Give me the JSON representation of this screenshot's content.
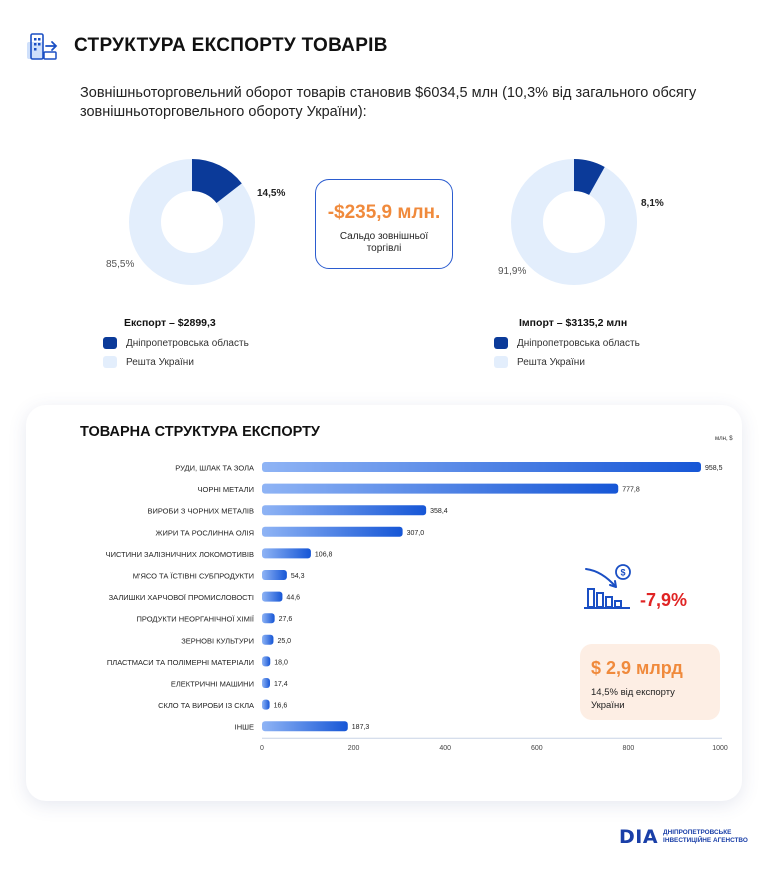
{
  "title": "СТРУКТУРА ЕКСПОРТУ ТОВАРІВ",
  "lead": "Зовнішньоторговельний оборот товарів становив $6034,5 млн (10,3% від загального обсягу зовнішньоторговельного обороту України):",
  "colors": {
    "accent": "#0b3a99",
    "light": "#e3eefc",
    "orange": "#f08a3c",
    "red": "#e02424",
    "bar_start": "#8fb4f5",
    "bar_end": "#1656d6"
  },
  "export_donut": {
    "share_label": "14,5%",
    "rest_label": "85,5%",
    "share": 14.5,
    "legend_title": "Експорт – $2899,3",
    "legend_region": "Дніпропетровська область",
    "legend_rest": "Решта України"
  },
  "import_donut": {
    "share_label": "8,1%",
    "rest_label": "91,9%",
    "share": 8.1,
    "legend_title": "Імпорт – $3135,2 млн",
    "legend_region": "Дніпропетровська область",
    "legend_rest": "Решта України"
  },
  "saldo": {
    "value": "-$235,9 млн.",
    "caption_line1": "Сальдо зовнішньої",
    "caption_line2": "торгівлі"
  },
  "structure": {
    "title": "ТОВАРНА СТРУКТУРА ЕКСПОРТУ",
    "unit": "млн, $"
  },
  "change": {
    "value": "-7,9%",
    "icon": "chart-down-dollar-icon"
  },
  "total": {
    "value": "$ 2,9 млрд",
    "caption_line1": "14,5% від експорту",
    "caption_line2": "України"
  },
  "logo": {
    "mark": "DIA",
    "line1": "ДНІПРОПЕТРОВСЬКЕ",
    "line2": "ІНВЕСТИЦІЙНЕ АГЕНСТВО"
  },
  "chart_data": [
    {
      "type": "pie",
      "title": "Експорт – $2899,3",
      "categories": [
        "Дніпропетровська область",
        "Решта України"
      ],
      "values": [
        14.5,
        85.5
      ]
    },
    {
      "type": "pie",
      "title": "Імпорт – $3135,2 млн",
      "categories": [
        "Дніпропетровська область",
        "Решта України"
      ],
      "values": [
        8.1,
        91.9
      ]
    },
    {
      "type": "bar",
      "orientation": "horizontal",
      "title": "ТОВАРНА СТРУКТУРА ЕКСПОРТУ",
      "xlabel": "млн, $",
      "xlim": [
        0,
        1000
      ],
      "xticks": [
        0,
        200,
        400,
        600,
        800,
        1000
      ],
      "categories": [
        "РУДИ, ШЛАК ТА ЗОЛА",
        "ЧОРНІ МЕТАЛИ",
        "ВИРОБИ З ЧОРНИХ МЕТАЛІВ",
        "ЖИРИ ТА РОСЛИННА ОЛІЯ",
        "ЧИСТИНИ ЗАЛІЗНИЧНИХ ЛОКОМОТИВІВ",
        "М'ЯСО ТА ЇСТІВНІ СУБПРОДУКТИ",
        "ЗАЛИШКИ ХАРЧОВОЇ ПРОМИСЛОВОСТІ",
        "ПРОДУКТИ НЕОРГАНІЧНОЇ ХІМІЇ",
        "ЗЕРНОВІ КУЛЬТУРИ",
        "ПЛАСТМАСИ ТА ПОЛІМЕРНІ МАТЕРІАЛИ",
        "ЕЛЕКТРИЧНІ МАШИНИ",
        "СКЛО ТА ВИРОБИ ІЗ СКЛА",
        "ІНШЕ"
      ],
      "values": [
        958.5,
        777.8,
        358.4,
        307.0,
        106.8,
        54.3,
        44.6,
        27.6,
        25.0,
        18.0,
        17.4,
        16.6,
        187.3
      ],
      "value_labels": [
        "958,5",
        "777,8",
        "358,4",
        "307,0",
        "106,8",
        "54,3",
        "44,6",
        "27,6",
        "25,0",
        "18,0",
        "17,4",
        "16,6",
        "187,3"
      ],
      "grid": false
    }
  ]
}
